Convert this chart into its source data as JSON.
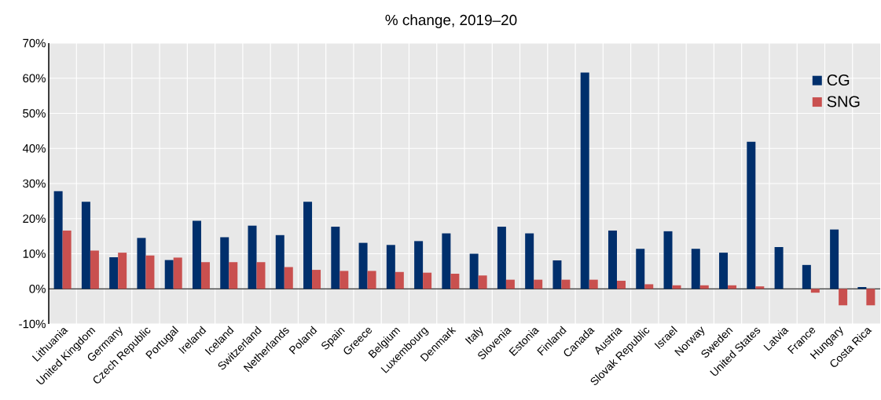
{
  "chart_data": {
    "type": "bar",
    "title": "% change, 2019–20",
    "categories": [
      "Lithuania",
      "United Kingdom",
      "Germany",
      "Czech Republic",
      "Portugal",
      "Ireland",
      "Iceland",
      "Switzerland",
      "Netherlands",
      "Poland",
      "Spain",
      "Greece",
      "Belgium",
      "Luxembourg",
      "Denmark",
      "Italy",
      "Slovenia",
      "Estonia",
      "Finland",
      "Canada",
      "Austria",
      "Slovak Republic",
      "Israel",
      "Norway",
      "Sweden",
      "United States",
      "Latvia",
      "France",
      "Hungary",
      "Costa Rica"
    ],
    "series": [
      {
        "name": "CG",
        "color": "#002f6c",
        "values": [
          27.8,
          24.8,
          9.0,
          14.5,
          8.2,
          19.4,
          14.7,
          18.0,
          15.3,
          24.8,
          17.7,
          13.1,
          12.5,
          13.6,
          15.8,
          10.0,
          17.7,
          15.8,
          8.1,
          61.6,
          16.6,
          11.4,
          16.4,
          11.4,
          10.3,
          41.9,
          11.9,
          6.8,
          16.9,
          0.5
        ]
      },
      {
        "name": "SNG",
        "color": "#c9504f",
        "values": [
          16.6,
          10.9,
          10.3,
          9.5,
          8.9,
          7.6,
          7.6,
          7.6,
          6.2,
          5.4,
          5.1,
          5.1,
          4.8,
          4.6,
          4.3,
          3.8,
          2.6,
          2.6,
          2.6,
          2.6,
          2.3,
          1.3,
          1.0,
          1.0,
          1.0,
          0.7,
          0,
          -1.1,
          -4.7,
          -4.7
        ]
      }
    ],
    "ylim": [
      -10,
      70
    ],
    "yticks": [
      {
        "value": -10,
        "label": "-10%"
      },
      {
        "value": 0,
        "label": "0%"
      },
      {
        "value": 10,
        "label": "10%"
      },
      {
        "value": 20,
        "label": "20%"
      },
      {
        "value": 30,
        "label": "30%"
      },
      {
        "value": 40,
        "label": "40%"
      },
      {
        "value": 50,
        "label": "50%"
      },
      {
        "value": 60,
        "label": "60%"
      },
      {
        "value": 70,
        "label": "70%"
      }
    ],
    "grid": true,
    "legend": "top right"
  }
}
